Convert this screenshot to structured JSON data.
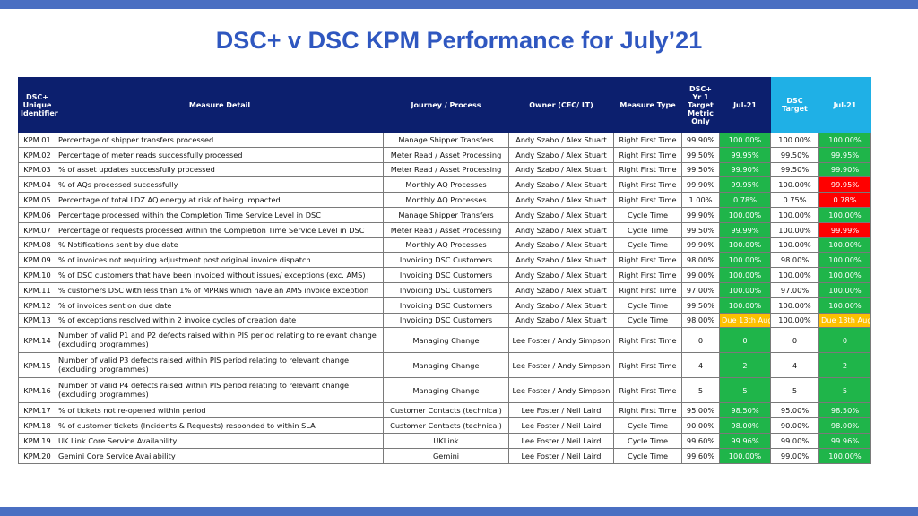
{
  "title": "DSC+ v DSC KPM Performance for July’21",
  "colors": {
    "green": "#1fb54a",
    "red": "#ff0000",
    "amber": "#ffc000",
    "header": "#0c1f6e",
    "header_cyan": "#1fb0e6"
  },
  "headers": {
    "id": "DSC+ Unique Identifier",
    "measure": "Measure Detail",
    "journey": "Journey / Process",
    "owner": "Owner (CEC/ LT)",
    "type": "Measure Type",
    "target_plus": "DSC+ Yr 1 Target Metric Only",
    "jul_plus": "Jul-21",
    "target_dsc": "DSC Target",
    "jul_dsc": "Jul-21"
  },
  "rows": [
    {
      "id": "KPM.01",
      "measure": "Percentage of shipper transfers processed",
      "journey": "Manage Shipper Transfers",
      "owner": "Andy Szabo / Alex Stuart",
      "type": "Right First Time",
      "target_plus": "99.90%",
      "jul_plus": "100.00%",
      "jul_plus_status": "green",
      "target_dsc": "100.00%",
      "jul_dsc": "100.00%",
      "jul_dsc_status": "green"
    },
    {
      "id": "KPM.02",
      "measure": "Percentage of meter reads successfully processed",
      "journey": "Meter Read / Asset Processing",
      "owner": "Andy Szabo / Alex Stuart",
      "type": "Right First Time",
      "target_plus": "99.50%",
      "jul_plus": "99.95%",
      "jul_plus_status": "green",
      "target_dsc": "99.50%",
      "jul_dsc": "99.95%",
      "jul_dsc_status": "green"
    },
    {
      "id": "KPM.03",
      "measure": "% of asset updates successfully processed",
      "journey": "Meter Read / Asset Processing",
      "owner": "Andy Szabo / Alex Stuart",
      "type": "Right First Time",
      "target_plus": "99.50%",
      "jul_plus": "99.90%",
      "jul_plus_status": "green",
      "target_dsc": "99.50%",
      "jul_dsc": "99.90%",
      "jul_dsc_status": "green"
    },
    {
      "id": "KPM.04",
      "measure": "% of AQs processed successfully",
      "journey": "Monthly AQ Processes",
      "owner": "Andy Szabo / Alex Stuart",
      "type": "Right First Time",
      "target_plus": "99.90%",
      "jul_plus": "99.95%",
      "jul_plus_status": "green",
      "target_dsc": "100.00%",
      "jul_dsc": "99.95%",
      "jul_dsc_status": "red"
    },
    {
      "id": "KPM.05",
      "measure": "Percentage of total LDZ AQ energy at risk of being impacted",
      "journey": "Monthly AQ Processes",
      "owner": "Andy Szabo / Alex Stuart",
      "type": "Right First Time",
      "target_plus": "1.00%",
      "jul_plus": "0.78%",
      "jul_plus_status": "green",
      "target_dsc": "0.75%",
      "jul_dsc": "0.78%",
      "jul_dsc_status": "red"
    },
    {
      "id": "KPM.06",
      "measure": "Percentage processed within the Completion Time Service Level in DSC",
      "journey": "Manage Shipper Transfers",
      "owner": "Andy Szabo / Alex Stuart",
      "type": "Cycle Time",
      "target_plus": "99.90%",
      "jul_plus": "100.00%",
      "jul_plus_status": "green",
      "target_dsc": "100.00%",
      "jul_dsc": "100.00%",
      "jul_dsc_status": "green"
    },
    {
      "id": "KPM.07",
      "measure": "Percentage of requests processed within the Completion Time Service Level in DSC",
      "journey": "Meter Read / Asset Processing",
      "owner": "Andy Szabo / Alex Stuart",
      "type": "Cycle Time",
      "target_plus": "99.50%",
      "jul_plus": "99.99%",
      "jul_plus_status": "green",
      "target_dsc": "100.00%",
      "jul_dsc": "99.99%",
      "jul_dsc_status": "red"
    },
    {
      "id": "KPM.08",
      "measure": "% Notifications sent by due date",
      "journey": "Monthly AQ Processes",
      "owner": "Andy Szabo / Alex Stuart",
      "type": "Cycle Time",
      "target_plus": "99.90%",
      "jul_plus": "100.00%",
      "jul_plus_status": "green",
      "target_dsc": "100.00%",
      "jul_dsc": "100.00%",
      "jul_dsc_status": "green"
    },
    {
      "id": "KPM.09",
      "measure": "% of invoices not requiring adjustment post original invoice dispatch",
      "journey": "Invoicing DSC Customers",
      "owner": "Andy Szabo / Alex Stuart",
      "type": "Right First Time",
      "target_plus": "98.00%",
      "jul_plus": "100.00%",
      "jul_plus_status": "green",
      "target_dsc": "98.00%",
      "jul_dsc": "100.00%",
      "jul_dsc_status": "green"
    },
    {
      "id": "KPM.10",
      "measure": "% of DSC customers that have been invoiced without issues/ exceptions (exc. AMS)",
      "journey": "Invoicing DSC Customers",
      "owner": "Andy Szabo / Alex Stuart",
      "type": "Right First Time",
      "target_plus": "99.00%",
      "jul_plus": "100.00%",
      "jul_plus_status": "green",
      "target_dsc": "100.00%",
      "jul_dsc": "100.00%",
      "jul_dsc_status": "green"
    },
    {
      "id": "KPM.11",
      "measure": "% customers DSC with less than 1% of MPRNs which have an AMS invoice exception",
      "journey": "Invoicing DSC Customers",
      "owner": "Andy Szabo / Alex Stuart",
      "type": "Right First Time",
      "target_plus": "97.00%",
      "jul_plus": "100.00%",
      "jul_plus_status": "green",
      "target_dsc": "97.00%",
      "jul_dsc": "100.00%",
      "jul_dsc_status": "green"
    },
    {
      "id": "KPM.12",
      "measure": "% of invoices sent on due date",
      "journey": "Invoicing DSC Customers",
      "owner": "Andy Szabo / Alex Stuart",
      "type": "Cycle Time",
      "target_plus": "99.50%",
      "jul_plus": "100.00%",
      "jul_plus_status": "green",
      "target_dsc": "100.00%",
      "jul_dsc": "100.00%",
      "jul_dsc_status": "green"
    },
    {
      "id": "KPM.13",
      "measure": "% of exceptions resolved within 2 invoice cycles of creation date",
      "journey": "Invoicing DSC Customers",
      "owner": "Andy Szabo / Alex Stuart",
      "type": "Cycle Time",
      "target_plus": "98.00%",
      "jul_plus": "Due 13th Aug",
      "jul_plus_status": "amber",
      "target_dsc": "100.00%",
      "jul_dsc": "Due 13th Aug",
      "jul_dsc_status": "amber"
    },
    {
      "id": "KPM.14",
      "measure": "Number of valid P1 and P2 defects raised within PIS period relating to relevant change (excluding programmes)",
      "journey": "Managing Change",
      "owner": "Lee Foster / Andy Simpson",
      "type": "Right First Time",
      "target_plus": "0",
      "jul_plus": "0",
      "jul_plus_status": "green",
      "target_dsc": "0",
      "jul_dsc": "0",
      "jul_dsc_status": "green",
      "tall": true
    },
    {
      "id": "KPM.15",
      "measure": "Number of valid P3 defects raised within PIS period relating to relevant change (excluding programmes)",
      "journey": "Managing Change",
      "owner": "Lee Foster / Andy Simpson",
      "type": "Right First Time",
      "target_plus": "4",
      "jul_plus": "2",
      "jul_plus_status": "green",
      "target_dsc": "4",
      "jul_dsc": "2",
      "jul_dsc_status": "green",
      "tall": true
    },
    {
      "id": "KPM.16",
      "measure": "Number of valid P4 defects raised within PIS period relating to relevant change (excluding programmes)",
      "journey": "Managing Change",
      "owner": "Lee Foster / Andy Simpson",
      "type": "Right First Time",
      "target_plus": "5",
      "jul_plus": "5",
      "jul_plus_status": "green",
      "target_dsc": "5",
      "jul_dsc": "5",
      "jul_dsc_status": "green",
      "tall": true
    },
    {
      "id": "KPM.17",
      "measure": "% of tickets not re-opened within period",
      "journey": "Customer Contacts (technical)",
      "owner": "Lee Foster / Neil Laird",
      "type": "Right First Time",
      "target_plus": "95.00%",
      "jul_plus": "98.50%",
      "jul_plus_status": "green",
      "target_dsc": "95.00%",
      "jul_dsc": "98.50%",
      "jul_dsc_status": "green"
    },
    {
      "id": "KPM.18",
      "measure": "% of customer tickets (Incidents & Requests) responded to within SLA",
      "journey": "Customer Contacts (technical)",
      "owner": "Lee Foster / Neil Laird",
      "type": "Cycle Time",
      "target_plus": "90.00%",
      "jul_plus": "98.00%",
      "jul_plus_status": "green",
      "target_dsc": "90.00%",
      "jul_dsc": "98.00%",
      "jul_dsc_status": "green"
    },
    {
      "id": "KPM.19",
      "measure": "UK Link Core Service Availability",
      "journey": "UKLink",
      "owner": "Lee Foster / Neil Laird",
      "type": "Cycle Time",
      "target_plus": "99.60%",
      "jul_plus": "99.96%",
      "jul_plus_status": "green",
      "target_dsc": "99.00%",
      "jul_dsc": "99.96%",
      "jul_dsc_status": "green"
    },
    {
      "id": "KPM.20",
      "measure": "Gemini Core Service Availability",
      "journey": "Gemini",
      "owner": "Lee Foster / Neil Laird",
      "type": "Cycle Time",
      "target_plus": "99.60%",
      "jul_plus": "100.00%",
      "jul_plus_status": "green",
      "target_dsc": "99.00%",
      "jul_dsc": "100.00%",
      "jul_dsc_status": "green"
    }
  ]
}
